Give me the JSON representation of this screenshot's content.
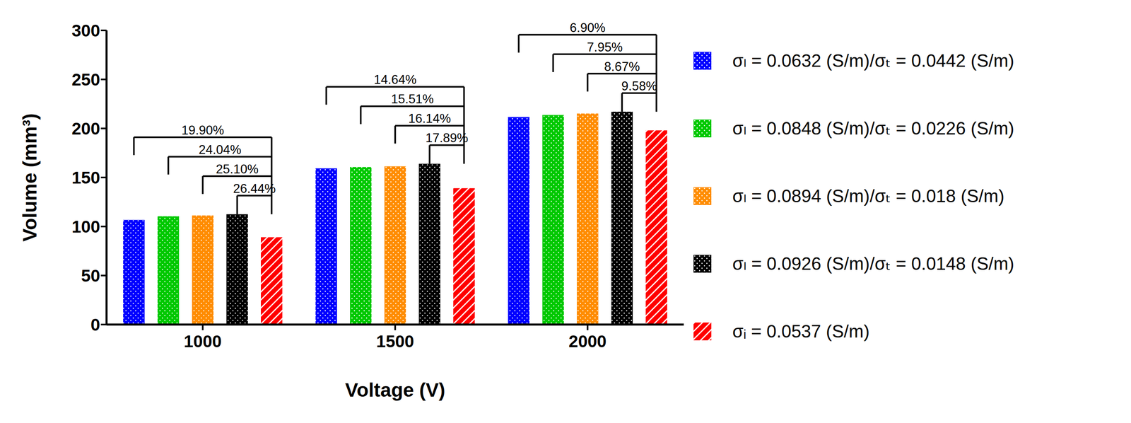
{
  "chart_data": {
    "type": "bar",
    "x_label": "Voltage (V)",
    "y_label": "Volume (mm³)",
    "categories": [
      "1000",
      "1500",
      "2000"
    ],
    "series": [
      {
        "name": "σₗ = 0.0632 (S/m)/σₜ = 0.0442 (S/m)",
        "color": "#0000ff",
        "values": [
          106.7,
          159.3,
          211.7
        ]
      },
      {
        "name": "σₗ = 0.0848 (S/m)/σₜ = 0.0226 (S/m)",
        "color": "#00c800",
        "values": [
          110.4,
          160.6,
          213.7
        ]
      },
      {
        "name": "σₗ = 0.0894 (S/m)/σₜ = 0.018 (S/m)",
        "color": "#ff8c00",
        "values": [
          111.3,
          161.4,
          215.2
        ]
      },
      {
        "name": "σₗ = 0.0926 (S/m)/σₜ = 0.0148 (S/m)",
        "color": "#000000",
        "values": [
          112.5,
          163.9,
          217.0
        ]
      },
      {
        "name": "σᵢ = 0.0537 (S/m)",
        "color": "#ff0000",
        "values": [
          89,
          139,
          198
        ]
      }
    ],
    "ylim": [
      0,
      300
    ],
    "yticks": [
      0,
      50,
      100,
      150,
      200,
      250,
      300
    ],
    "grid": false,
    "legend": "right",
    "annotations": [
      {
        "category": "1000",
        "labels": [
          "19.90%",
          "24.04%",
          "25.10%",
          "26.44%"
        ]
      },
      {
        "category": "1500",
        "labels": [
          "14.64%",
          "15.51%",
          "16.14%",
          "17.89%"
        ]
      },
      {
        "category": "2000",
        "labels": [
          "6.90%",
          "7.95%",
          "8.67%",
          "9.58%"
        ]
      }
    ]
  }
}
